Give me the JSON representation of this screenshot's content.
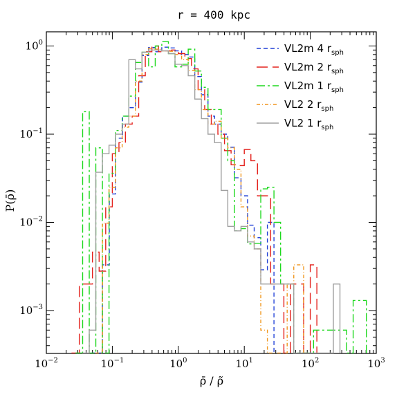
{
  "chart_data": {
    "type": "line",
    "title": "r = 400 kpc",
    "xlabel": "ρ̄ / ρ̃",
    "ylabel": "P(ρ̄)",
    "xscale": "log",
    "yscale": "log",
    "xlim": [
      0.01,
      1000
    ],
    "ylim": [
      0.00032,
      1.5
    ],
    "grid": false,
    "legend_position": "top-right",
    "x_ticks": [
      {
        "base": "10",
        "exp": "−2",
        "value": 0.01
      },
      {
        "base": "10",
        "exp": "−1",
        "value": 0.1
      },
      {
        "base": "10",
        "exp": "0",
        "value": 1
      },
      {
        "base": "10",
        "exp": "1",
        "value": 10
      },
      {
        "base": "10",
        "exp": "2",
        "value": 100
      },
      {
        "base": "10",
        "exp": "3",
        "value": 1000
      }
    ],
    "y_ticks": [
      {
        "base": "10",
        "exp": "0",
        "value": 1
      },
      {
        "base": "10",
        "exp": "−1",
        "value": 0.1
      },
      {
        "base": "10",
        "exp": "−2",
        "value": 0.01
      },
      {
        "base": "10",
        "exp": "−3",
        "value": 0.001
      }
    ],
    "series": [
      {
        "name": "VL2m 4",
        "sub": "sph",
        "color": "#1f3fd6",
        "dash": "6,4",
        "steps": [
          [
            0.049,
            0.00033
          ],
          [
            0.0707,
            0.0033
          ],
          [
            0.09,
            0.021
          ],
          [
            0.112,
            0.09
          ],
          [
            0.143,
            0.16
          ],
          [
            0.178,
            0.2
          ],
          [
            0.224,
            0.39
          ],
          [
            0.282,
            0.78
          ],
          [
            0.355,
            0.96
          ],
          [
            0.447,
            0.86
          ],
          [
            0.562,
            0.97
          ],
          [
            0.708,
            0.95
          ],
          [
            0.891,
            0.88
          ],
          [
            1.122,
            0.8
          ],
          [
            1.413,
            0.75
          ],
          [
            1.778,
            0.45
          ],
          [
            2.239,
            0.28
          ],
          [
            2.818,
            0.16
          ],
          [
            3.548,
            0.13
          ],
          [
            4.467,
            0.1
          ],
          [
            5.623,
            0.071
          ],
          [
            7.079,
            0.032
          ],
          [
            8.913,
            0.02
          ],
          [
            11.22,
            0.0093
          ],
          [
            14.13,
            0.0067
          ],
          [
            17.78,
            0.0029
          ],
          [
            22.39,
            0.01
          ],
          [
            28.18,
            0.00033
          ]
        ]
      },
      {
        "name": "VL2m 2",
        "sub": "sph",
        "color": "#e3201b",
        "dash": "16,7",
        "steps": [
          [
            0.0245,
            0.00033
          ],
          [
            0.0316,
            0.002
          ],
          [
            0.05,
            0.0046
          ],
          [
            0.0631,
            0.0028
          ],
          [
            0.0794,
            0.015
          ],
          [
            0.1,
            0.06
          ],
          [
            0.126,
            0.08
          ],
          [
            0.158,
            0.13
          ],
          [
            0.2,
            0.16
          ],
          [
            0.251,
            0.46
          ],
          [
            0.316,
            0.86
          ],
          [
            0.398,
            1.0
          ],
          [
            0.501,
            0.86
          ],
          [
            0.631,
            0.88
          ],
          [
            0.794,
            0.9
          ],
          [
            1.0,
            0.82
          ],
          [
            1.259,
            0.72
          ],
          [
            1.585,
            0.55
          ],
          [
            1.995,
            0.32
          ],
          [
            2.512,
            0.19
          ],
          [
            3.162,
            0.13
          ],
          [
            3.981,
            0.1
          ],
          [
            5.012,
            0.065
          ],
          [
            6.31,
            0.045
          ],
          [
            7.943,
            0.044
          ],
          [
            10.0,
            0.067
          ],
          [
            12.59,
            0.05
          ],
          [
            15.85,
            0.02
          ],
          [
            19.95,
            0.02
          ],
          [
            25.12,
            0.002
          ],
          [
            31.62,
            0.002
          ],
          [
            39.81,
            0.00033
          ],
          [
            50.12,
            0.002
          ],
          [
            63.1,
            0.002
          ],
          [
            79.43,
            0.00033
          ],
          [
            100.0,
            0.0033
          ],
          [
            125.9,
            0.00033
          ]
        ]
      },
      {
        "name": "VL2m 1",
        "sub": "sph",
        "color": "#1ed81e",
        "dash": "12,4,3,4",
        "steps": [
          [
            0.0282,
            0.00033
          ],
          [
            0.0355,
            0.18
          ],
          [
            0.0447,
            0.00033
          ],
          [
            0.0562,
            0.07
          ],
          [
            0.0708,
            0.00033
          ],
          [
            0.0891,
            0.036
          ],
          [
            0.112,
            0.11
          ],
          [
            0.141,
            0.16
          ],
          [
            0.178,
            0.27
          ],
          [
            0.224,
            0.65
          ],
          [
            0.282,
            0.85
          ],
          [
            0.355,
            0.58
          ],
          [
            0.447,
            1.0
          ],
          [
            0.562,
            1.12
          ],
          [
            0.708,
            0.82
          ],
          [
            0.891,
            0.58
          ],
          [
            1.122,
            0.62
          ],
          [
            1.413,
            0.92
          ],
          [
            1.778,
            0.52
          ],
          [
            2.239,
            0.34
          ],
          [
            2.818,
            0.19
          ],
          [
            3.548,
            0.19
          ],
          [
            4.467,
            0.09
          ],
          [
            5.623,
            0.05
          ],
          [
            7.079,
            0.008
          ],
          [
            8.913,
            0.0085
          ],
          [
            11.22,
            0.0057
          ],
          [
            14.13,
            0.0058
          ],
          [
            17.78,
            0.024
          ],
          [
            22.39,
            0.025
          ],
          [
            28.18,
            0.01
          ],
          [
            35.48,
            0.002
          ],
          [
            44.67,
            0.002
          ],
          [
            56.23,
            0.00033
          ],
          [
            112.2,
            0.0006
          ],
          [
            141.3,
            0.0006
          ],
          [
            177.8,
            0.0006
          ],
          [
            223.9,
            0.0006
          ],
          [
            281.8,
            0.0006
          ],
          [
            354.8,
            0.00033
          ],
          [
            446.7,
            0.0013
          ],
          [
            562.3,
            0.0013
          ],
          [
            707.9,
            0.00033
          ]
        ]
      },
      {
        "name": "VL2 2",
        "sub": "sph",
        "color": "#f0961e",
        "dash": "5,3,1,3",
        "steps": [
          [
            0.0562,
            0.00033
          ],
          [
            0.0708,
            0.0098
          ],
          [
            0.0891,
            0.025
          ],
          [
            0.112,
            0.07
          ],
          [
            0.141,
            0.12
          ],
          [
            0.178,
            0.16
          ],
          [
            0.224,
            0.4
          ],
          [
            0.282,
            0.8
          ],
          [
            0.355,
            0.94
          ],
          [
            0.447,
            0.92
          ],
          [
            0.562,
            0.88
          ],
          [
            0.708,
            0.87
          ],
          [
            0.891,
            0.8
          ],
          [
            1.122,
            0.7
          ],
          [
            1.413,
            0.53
          ],
          [
            1.778,
            0.32
          ],
          [
            2.239,
            0.19
          ],
          [
            2.818,
            0.13
          ],
          [
            3.548,
            0.14
          ],
          [
            4.467,
            0.09
          ],
          [
            5.623,
            0.07
          ],
          [
            7.079,
            0.04
          ],
          [
            8.913,
            0.015
          ],
          [
            11.22,
            0.007
          ],
          [
            14.13,
            0.005
          ],
          [
            17.78,
            0.0006
          ],
          [
            22.39,
            0.00033
          ],
          [
            44.67,
            0.002
          ],
          [
            56.23,
            0.0033
          ],
          [
            79.43,
            0.00033
          ]
        ]
      },
      {
        "name": "VL2 1",
        "sub": "sph",
        "color": "#a0a0a0",
        "dash": "",
        "steps": [
          [
            0.0355,
            0.00033
          ],
          [
            0.0447,
            0.0006
          ],
          [
            0.0562,
            0.037
          ],
          [
            0.0708,
            0.06
          ],
          [
            0.0891,
            0.075
          ],
          [
            0.112,
            0.1
          ],
          [
            0.141,
            0.13
          ],
          [
            0.178,
            0.7
          ],
          [
            0.224,
            0.55
          ],
          [
            0.282,
            0.85
          ],
          [
            0.355,
            0.9
          ],
          [
            0.447,
            0.9
          ],
          [
            0.562,
            0.88
          ],
          [
            0.708,
            0.82
          ],
          [
            0.891,
            0.62
          ],
          [
            1.122,
            0.6
          ],
          [
            1.413,
            0.46
          ],
          [
            1.778,
            0.25
          ],
          [
            2.239,
            0.15
          ],
          [
            2.818,
            0.1
          ],
          [
            3.548,
            0.08
          ],
          [
            4.467,
            0.023
          ],
          [
            5.623,
            0.009
          ],
          [
            7.079,
            0.008
          ],
          [
            8.913,
            0.009
          ],
          [
            11.22,
            0.006
          ],
          [
            14.13,
            0.005
          ],
          [
            17.78,
            0.002
          ],
          [
            28.18,
            0.002
          ],
          [
            56.23,
            0.00033
          ],
          [
            177.8,
            0.00033
          ],
          [
            223.9,
            0.002
          ],
          [
            281.8,
            0.00033
          ]
        ]
      }
    ]
  }
}
